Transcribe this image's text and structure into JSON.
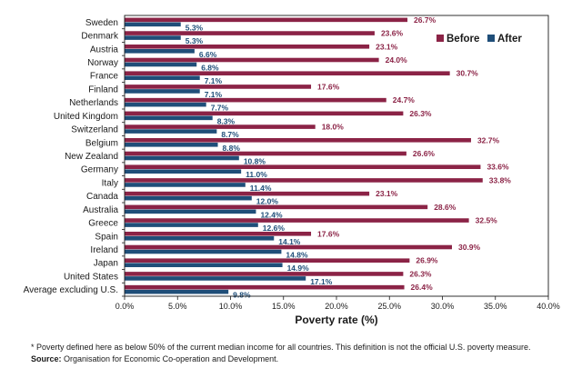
{
  "chart_data": {
    "type": "bar",
    "orientation": "horizontal",
    "categories": [
      "Sweden",
      "Denmark",
      "Austria",
      "Norway",
      "France",
      "Finland",
      "Netherlands",
      "United Kingdom",
      "Switzerland",
      "Belgium",
      "New Zealand",
      "Germany",
      "Italy",
      "Canada",
      "Australia",
      "Greece",
      "Spain",
      "Ireland",
      "Japan",
      "United States",
      "Average excluding U.S."
    ],
    "series": [
      {
        "name": "Before",
        "color": "#8b2346",
        "values": [
          26.7,
          23.6,
          23.1,
          24.0,
          30.7,
          17.6,
          24.7,
          26.3,
          18.0,
          32.7,
          26.6,
          33.6,
          33.8,
          23.1,
          28.6,
          32.5,
          17.6,
          30.9,
          26.9,
          26.3,
          26.4
        ],
        "labels": [
          "26.7%",
          "23.6%",
          "23.1%",
          "24.0%",
          "30.7%",
          "17.6%",
          "24.7%",
          "26.3%",
          "18.0%",
          "32.7%",
          "26.6%",
          "33.6%",
          "33.8%",
          "23.1%",
          "28.6%",
          "32.5%",
          "17.6%",
          "30.9%",
          "26.9%",
          "26.3%",
          "26.4%"
        ]
      },
      {
        "name": "After",
        "color": "#1f4e79",
        "values": [
          5.3,
          5.3,
          6.6,
          6.8,
          7.1,
          7.1,
          7.7,
          8.3,
          8.7,
          8.8,
          10.8,
          11.0,
          11.4,
          12.0,
          12.4,
          12.6,
          14.1,
          14.8,
          14.9,
          17.1,
          9.8
        ],
        "labels": [
          "5.3%",
          "5.3%",
          "6.6%",
          "6.8%",
          "7.1%",
          "7.1%",
          "7.7%",
          "8.3%",
          "8.7%",
          "8.8%",
          "10.8%",
          "11.0%",
          "11.4%",
          "12.0%",
          "12.4%",
          "12.6%",
          "14.1%",
          "14.8%",
          "14.9%",
          "17.1%",
          "9.8%"
        ]
      }
    ],
    "xlim": [
      0,
      40
    ],
    "xticks": [
      "0.0%",
      "5.0%",
      "10.0%",
      "15.0%",
      "20.0%",
      "25.0%",
      "30.0%",
      "35.0%",
      "40.0%"
    ],
    "xlabel": "Poverty rate (%)",
    "legend_position": "top-right",
    "grid": false
  },
  "footnote": {
    "note": "* Poverty defined here as below 50% of the current median income for all countries. This definition is not the official U.S. poverty measure.",
    "source_label": "Source:",
    "source_text": " Organisation for Economic Co-operation and Development."
  }
}
